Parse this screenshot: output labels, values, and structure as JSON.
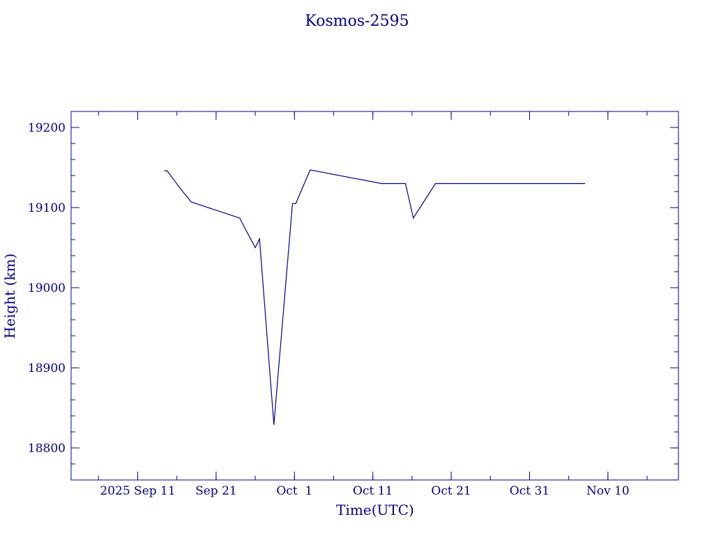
{
  "chart_data": {
    "type": "line",
    "title": "Kosmos-2595",
    "xlabel": "Time(UTC)",
    "ylabel": "Height (km)",
    "x_major_ticks": [
      {
        "date": "2025-09-11",
        "label": "2025 Sep 11"
      },
      {
        "date": "2025-09-21",
        "label": "Sep 21"
      },
      {
        "date": "2025-10-01",
        "label": "Oct  1"
      },
      {
        "date": "2025-10-11",
        "label": "Oct 11"
      },
      {
        "date": "2025-10-21",
        "label": "Oct 21"
      },
      {
        "date": "2025-10-31",
        "label": "Oct 31"
      },
      {
        "date": "2025-11-10",
        "label": "Nov 10"
      }
    ],
    "xlim": [
      "2025-09-02T12:00",
      "2025-11-19T00:00"
    ],
    "ylim": [
      18760,
      19220
    ],
    "y_major_ticks": [
      18800,
      18900,
      19000,
      19100,
      19200
    ],
    "y_minor_step": 20,
    "x_minor_step_days": 5,
    "grid": false,
    "color": "#00008b",
    "series": [
      {
        "points": [
          {
            "x": "2025-09-14T09:00",
            "y": 19146
          },
          {
            "x": "2025-09-14T18:00",
            "y": 19146
          },
          {
            "x": "2025-09-16T10:00",
            "y": 19124
          },
          {
            "x": "2025-09-17T20:00",
            "y": 19107
          },
          {
            "x": "2025-09-24T00:00",
            "y": 19087
          },
          {
            "x": "2025-09-26T00:00",
            "y": 19050
          },
          {
            "x": "2025-09-26T13:00",
            "y": 19061
          },
          {
            "x": "2025-09-28T09:00",
            "y": 18829
          },
          {
            "x": "2025-09-30T18:00",
            "y": 19105
          },
          {
            "x": "2025-10-01T04:00",
            "y": 19105
          },
          {
            "x": "2025-10-03T00:00",
            "y": 19147
          },
          {
            "x": "2025-10-12T03:00",
            "y": 19130
          },
          {
            "x": "2025-10-15T04:00",
            "y": 19130
          },
          {
            "x": "2025-10-16T04:00",
            "y": 19087
          },
          {
            "x": "2025-10-19T00:00",
            "y": 19130
          },
          {
            "x": "2025-11-07T02:00",
            "y": 19130
          }
        ]
      }
    ]
  }
}
